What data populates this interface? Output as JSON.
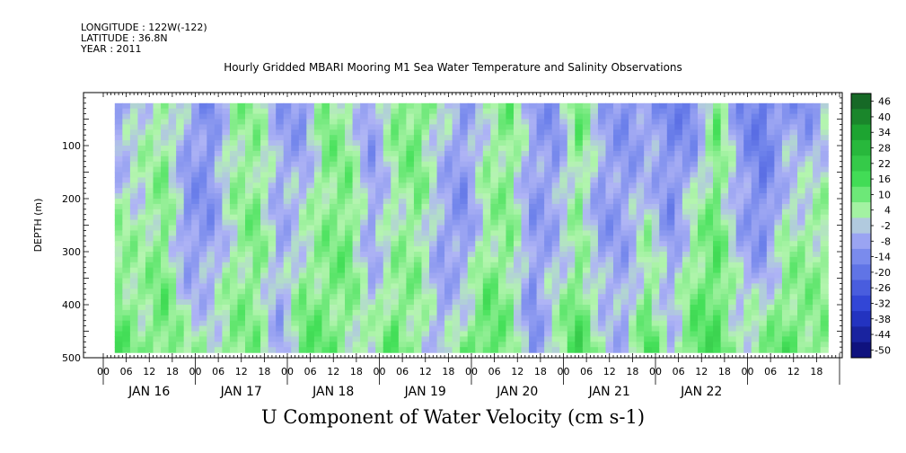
{
  "header": {
    "longitude": "LONGITUDE : 122W(-122)",
    "latitude": "LATITUDE : 36.8N",
    "year": "YEAR : 2011"
  },
  "colors": {
    "strong_positive": "#1e6b2a",
    "positive": "#39d24a",
    "weak_positive": "#a9f0a3",
    "weak_negative": "#aab3f0",
    "negative": "#5a6ee6",
    "strong_negative": "#0a0a6e"
  },
  "chart_data": {
    "type": "heatmap",
    "title": "Hourly Gridded MBARI Mooring M1 Sea Water Temperature and Salinity Observations",
    "xlabel": "U Component of Water Velocity (cm s-1)",
    "ylabel": "DEPTH (m)",
    "ylim": [
      500,
      0
    ],
    "y_ticks": [
      100,
      200,
      300,
      400,
      500
    ],
    "x_hour_ticks": [
      "00",
      "06",
      "12",
      "18",
      "00",
      "06",
      "12",
      "18",
      "00",
      "06",
      "12",
      "18",
      "00",
      "06",
      "12",
      "18",
      "00",
      "06",
      "12",
      "18",
      "00",
      "06",
      "12",
      "18",
      "00",
      "06",
      "12",
      "18",
      "00",
      "06",
      "12",
      "18"
    ],
    "x_day_labels": [
      "JAN 16",
      "JAN 17",
      "JAN 18",
      "JAN 19",
      "JAN 20",
      "JAN 21",
      "JAN 22"
    ],
    "colorbar_labels": [
      "46",
      "40",
      "34",
      "28",
      "22",
      "16",
      "10",
      "4",
      "-2",
      "-8",
      "-14",
      "-20",
      "-26",
      "-32",
      "-38",
      "-44",
      "-50"
    ],
    "value_range": [
      -50,
      50
    ],
    "time_bands": [
      {
        "hour": 4,
        "top": -8,
        "mid": 6,
        "bottom": 14
      },
      {
        "hour": 10,
        "top": 2,
        "mid": 4,
        "bottom": 8
      },
      {
        "hour": 16,
        "top": 6,
        "mid": 10,
        "bottom": 12
      },
      {
        "hour": 22,
        "top": -4,
        "mid": -10,
        "bottom": 6
      },
      {
        "hour": 28,
        "top": -12,
        "mid": -8,
        "bottom": 4
      },
      {
        "hour": 34,
        "top": 8,
        "mid": 4,
        "bottom": 10
      },
      {
        "hour": 40,
        "top": 6,
        "mid": 10,
        "bottom": 8
      },
      {
        "hour": 46,
        "top": -6,
        "mid": -4,
        "bottom": -6
      },
      {
        "hour": 52,
        "top": -10,
        "mid": 2,
        "bottom": 14
      },
      {
        "hour": 58,
        "top": 10,
        "mid": 8,
        "bottom": 12
      },
      {
        "hour": 64,
        "top": 4,
        "mid": 12,
        "bottom": 6
      },
      {
        "hour": 70,
        "top": -8,
        "mid": -6,
        "bottom": 4
      },
      {
        "hour": 76,
        "top": 8,
        "mid": 4,
        "bottom": 14
      },
      {
        "hour": 82,
        "top": 12,
        "mid": 8,
        "bottom": 6
      },
      {
        "hour": 88,
        "top": 2,
        "mid": -6,
        "bottom": -4
      },
      {
        "hour": 94,
        "top": -8,
        "mid": -10,
        "bottom": 10
      },
      {
        "hour": 100,
        "top": 4,
        "mid": 6,
        "bottom": 16
      },
      {
        "hour": 106,
        "top": 10,
        "mid": 8,
        "bottom": 8
      },
      {
        "hour": 112,
        "top": -6,
        "mid": -8,
        "bottom": -10
      },
      {
        "hour": 118,
        "top": -10,
        "mid": -4,
        "bottom": 6
      },
      {
        "hour": 124,
        "top": 12,
        "mid": 6,
        "bottom": 18
      },
      {
        "hour": 130,
        "top": -4,
        "mid": -8,
        "bottom": 4
      },
      {
        "hour": 136,
        "top": -10,
        "mid": -6,
        "bottom": -4
      },
      {
        "hour": 142,
        "top": -8,
        "mid": 4,
        "bottom": 16
      },
      {
        "hour": 148,
        "top": -12,
        "mid": -10,
        "bottom": 2
      },
      {
        "hour": 154,
        "top": -14,
        "mid": 6,
        "bottom": 14
      },
      {
        "hour": 160,
        "top": 10,
        "mid": 12,
        "bottom": 16
      },
      {
        "hour": 166,
        "top": -10,
        "mid": -4,
        "bottom": 4
      },
      {
        "hour": 172,
        "top": -16,
        "mid": -12,
        "bottom": 10
      },
      {
        "hour": 178,
        "top": -8,
        "mid": 4,
        "bottom": 14
      },
      {
        "hour": 184,
        "top": -10,
        "mid": 6,
        "bottom": 10
      },
      {
        "hour": 190,
        "top": 4,
        "mid": 6,
        "bottom": 8
      }
    ]
  }
}
